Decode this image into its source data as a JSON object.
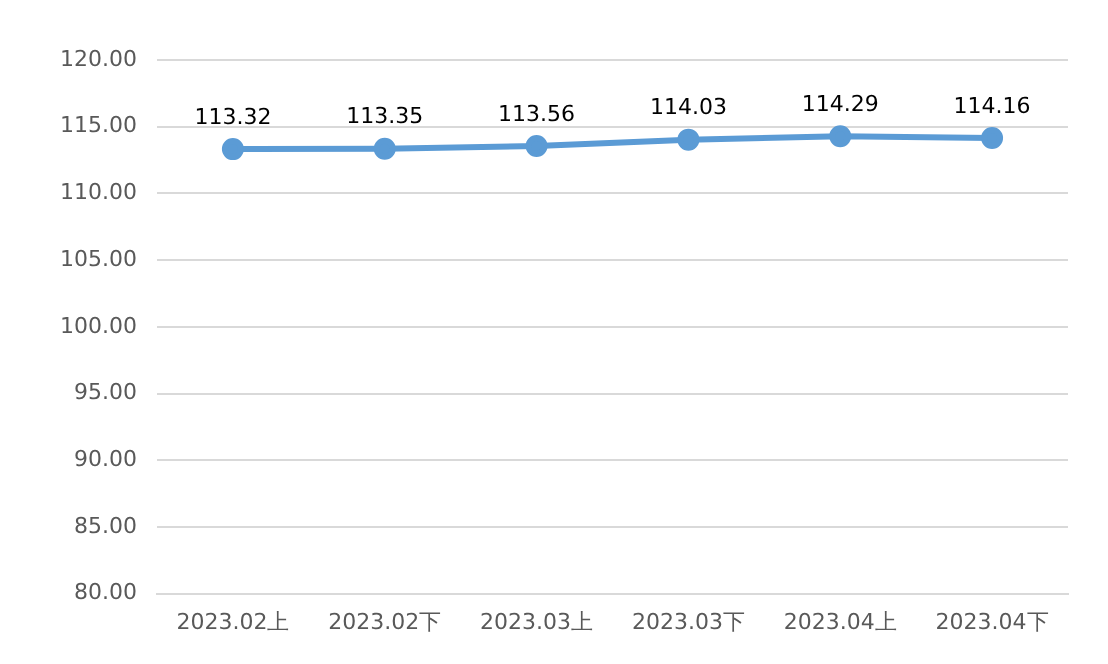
{
  "chart_data": {
    "type": "line",
    "categories": [
      "2023.02上",
      "2023.02下",
      "2023.03上",
      "2023.03下",
      "2023.04上",
      "2023.04下"
    ],
    "series": [
      {
        "color": "#5b9bd5",
        "values": [
          113.32,
          113.35,
          113.56,
          114.03,
          114.29,
          114.16
        ]
      }
    ],
    "ylim": [
      80,
      120
    ],
    "yticks": [
      {
        "value": 80,
        "label": "80.00"
      },
      {
        "value": 85,
        "label": "85.00"
      },
      {
        "value": 90,
        "label": "90.00"
      },
      {
        "value": 95,
        "label": "95.00"
      },
      {
        "value": 100,
        "label": "100.00"
      },
      {
        "value": 105,
        "label": "105.00"
      },
      {
        "value": 110,
        "label": "110.00"
      },
      {
        "value": 115,
        "label": "115.00"
      },
      {
        "value": 120,
        "label": "120.00"
      }
    ],
    "grid": "y",
    "legend": false,
    "marker": "circle",
    "line_style": "solid",
    "data_labels": true
  }
}
